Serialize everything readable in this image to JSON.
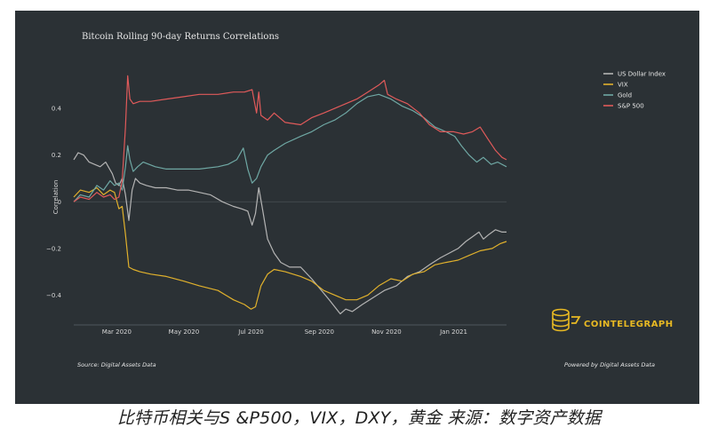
{
  "caption": "比特币相关与S &P500，VIX，DXY，黄金 来源：数字资产数据",
  "source_note": "Source: Digital Assets Data",
  "powered_by": "Powered by Digital Assets Data",
  "logo_text": "COINTELEGRAPH",
  "colors": {
    "background": "#2b3135",
    "us_dollar_index": "#b4b4b4",
    "vix": "#e1b12c",
    "gold": "#6fa8a4",
    "sp500": "#e05a5a",
    "zero_line": "#4a5256"
  },
  "chart_data": {
    "type": "line",
    "title": "Bitcoin Rolling 90-day Returns Correlations",
    "xlabel": "",
    "ylabel": "Correlation",
    "x_domain": [
      "2020-01-22",
      "2021-02-18"
    ],
    "ylim": [
      -0.52,
      0.56
    ],
    "yticks": [
      -0.4,
      -0.2,
      0,
      0.2,
      0.4
    ],
    "ytick_labels": [
      "−0.4",
      "−0.2",
      "0",
      "0.2",
      "0.4"
    ],
    "xticks": [
      {
        "date": "2020-03-01",
        "label": "Mar 2020"
      },
      {
        "date": "2020-05-01",
        "label": "May 2020"
      },
      {
        "date": "2020-07-01",
        "label": "Jul 2020"
      },
      {
        "date": "2020-09-01",
        "label": "Sep 2020"
      },
      {
        "date": "2020-11-01",
        "label": "Nov 2020"
      },
      {
        "date": "2021-01-01",
        "label": "Jan 2021"
      }
    ],
    "grid": false,
    "legend_position": "top-right",
    "series": [
      {
        "name": "US Dollar Index",
        "color": "#b4b4b4",
        "points": [
          [
            "2020-01-22",
            0.18
          ],
          [
            "2020-01-26",
            0.21
          ],
          [
            "2020-01-31",
            0.2
          ],
          [
            "2020-02-05",
            0.17
          ],
          [
            "2020-02-10",
            0.16
          ],
          [
            "2020-02-15",
            0.15
          ],
          [
            "2020-02-20",
            0.17
          ],
          [
            "2020-02-26",
            0.12
          ],
          [
            "2020-02-29",
            0.08
          ],
          [
            "2020-03-03",
            0.07
          ],
          [
            "2020-03-06",
            0.1
          ],
          [
            "2020-03-09",
            0.03
          ],
          [
            "2020-03-12",
            -0.08
          ],
          [
            "2020-03-15",
            0.05
          ],
          [
            "2020-03-18",
            0.1
          ],
          [
            "2020-03-22",
            0.08
          ],
          [
            "2020-03-28",
            0.07
          ],
          [
            "2020-04-05",
            0.06
          ],
          [
            "2020-04-15",
            0.06
          ],
          [
            "2020-04-25",
            0.05
          ],
          [
            "2020-05-05",
            0.05
          ],
          [
            "2020-05-15",
            0.04
          ],
          [
            "2020-05-25",
            0.03
          ],
          [
            "2020-06-05",
            0.0
          ],
          [
            "2020-06-15",
            -0.02
          ],
          [
            "2020-06-22",
            -0.03
          ],
          [
            "2020-06-28",
            -0.04
          ],
          [
            "2020-07-02",
            -0.1
          ],
          [
            "2020-07-05",
            -0.05
          ],
          [
            "2020-07-08",
            0.06
          ],
          [
            "2020-07-11",
            -0.02
          ],
          [
            "2020-07-16",
            -0.16
          ],
          [
            "2020-07-22",
            -0.22
          ],
          [
            "2020-07-28",
            -0.26
          ],
          [
            "2020-08-05",
            -0.28
          ],
          [
            "2020-08-15",
            -0.28
          ],
          [
            "2020-08-25",
            -0.33
          ],
          [
            "2020-09-03",
            -0.38
          ],
          [
            "2020-09-10",
            -0.42
          ],
          [
            "2020-09-15",
            -0.45
          ],
          [
            "2020-09-20",
            -0.48
          ],
          [
            "2020-09-25",
            -0.46
          ],
          [
            "2020-10-01",
            -0.47
          ],
          [
            "2020-10-10",
            -0.44
          ],
          [
            "2020-10-20",
            -0.41
          ],
          [
            "2020-10-30",
            -0.38
          ],
          [
            "2020-11-10",
            -0.36
          ],
          [
            "2020-11-20",
            -0.32
          ],
          [
            "2020-12-01",
            -0.3
          ],
          [
            "2020-12-10",
            -0.27
          ],
          [
            "2020-12-20",
            -0.24
          ],
          [
            "2020-12-28",
            -0.22
          ],
          [
            "2021-01-05",
            -0.2
          ],
          [
            "2021-01-12",
            -0.17
          ],
          [
            "2021-01-18",
            -0.15
          ],
          [
            "2021-01-24",
            -0.13
          ],
          [
            "2021-01-28",
            -0.16
          ],
          [
            "2021-02-02",
            -0.14
          ],
          [
            "2021-02-08",
            -0.12
          ],
          [
            "2021-02-14",
            -0.13
          ],
          [
            "2021-02-18",
            -0.13
          ]
        ]
      },
      {
        "name": "VIX",
        "color": "#e1b12c",
        "points": [
          [
            "2020-01-22",
            0.02
          ],
          [
            "2020-01-28",
            0.05
          ],
          [
            "2020-02-05",
            0.04
          ],
          [
            "2020-02-12",
            0.06
          ],
          [
            "2020-02-18",
            0.03
          ],
          [
            "2020-02-24",
            0.05
          ],
          [
            "2020-02-28",
            0.04
          ],
          [
            "2020-03-03",
            -0.03
          ],
          [
            "2020-03-06",
            -0.02
          ],
          [
            "2020-03-09",
            -0.14
          ],
          [
            "2020-03-12",
            -0.28
          ],
          [
            "2020-03-16",
            -0.29
          ],
          [
            "2020-03-22",
            -0.3
          ],
          [
            "2020-04-01",
            -0.31
          ],
          [
            "2020-04-15",
            -0.32
          ],
          [
            "2020-05-01",
            -0.34
          ],
          [
            "2020-05-15",
            -0.36
          ],
          [
            "2020-06-01",
            -0.38
          ],
          [
            "2020-06-15",
            -0.42
          ],
          [
            "2020-06-25",
            -0.44
          ],
          [
            "2020-07-01",
            -0.46
          ],
          [
            "2020-07-05",
            -0.45
          ],
          [
            "2020-07-10",
            -0.36
          ],
          [
            "2020-07-16",
            -0.31
          ],
          [
            "2020-07-22",
            -0.29
          ],
          [
            "2020-08-01",
            -0.3
          ],
          [
            "2020-08-15",
            -0.32
          ],
          [
            "2020-08-25",
            -0.34
          ],
          [
            "2020-09-05",
            -0.38
          ],
          [
            "2020-09-15",
            -0.4
          ],
          [
            "2020-09-25",
            -0.42
          ],
          [
            "2020-10-05",
            -0.42
          ],
          [
            "2020-10-15",
            -0.4
          ],
          [
            "2020-10-25",
            -0.36
          ],
          [
            "2020-11-05",
            -0.33
          ],
          [
            "2020-11-15",
            -0.34
          ],
          [
            "2020-11-25",
            -0.31
          ],
          [
            "2020-12-05",
            -0.3
          ],
          [
            "2020-12-15",
            -0.27
          ],
          [
            "2020-12-25",
            -0.26
          ],
          [
            "2021-01-05",
            -0.25
          ],
          [
            "2021-01-15",
            -0.23
          ],
          [
            "2021-01-25",
            -0.21
          ],
          [
            "2021-02-05",
            -0.2
          ],
          [
            "2021-02-12",
            -0.18
          ],
          [
            "2021-02-18",
            -0.17
          ]
        ]
      },
      {
        "name": "Gold",
        "color": "#6fa8a4",
        "points": [
          [
            "2020-01-22",
            0.0
          ],
          [
            "2020-01-28",
            0.03
          ],
          [
            "2020-02-05",
            0.02
          ],
          [
            "2020-02-12",
            0.07
          ],
          [
            "2020-02-18",
            0.05
          ],
          [
            "2020-02-24",
            0.09
          ],
          [
            "2020-02-28",
            0.07
          ],
          [
            "2020-03-03",
            0.08
          ],
          [
            "2020-03-06",
            0.05
          ],
          [
            "2020-03-09",
            0.15
          ],
          [
            "2020-03-11",
            0.24
          ],
          [
            "2020-03-13",
            0.18
          ],
          [
            "2020-03-16",
            0.13
          ],
          [
            "2020-03-20",
            0.15
          ],
          [
            "2020-03-25",
            0.17
          ],
          [
            "2020-04-05",
            0.15
          ],
          [
            "2020-04-15",
            0.14
          ],
          [
            "2020-05-01",
            0.14
          ],
          [
            "2020-05-15",
            0.14
          ],
          [
            "2020-06-01",
            0.15
          ],
          [
            "2020-06-10",
            0.16
          ],
          [
            "2020-06-18",
            0.18
          ],
          [
            "2020-06-24",
            0.23
          ],
          [
            "2020-06-28",
            0.14
          ],
          [
            "2020-07-02",
            0.08
          ],
          [
            "2020-07-06",
            0.1
          ],
          [
            "2020-07-10",
            0.15
          ],
          [
            "2020-07-16",
            0.2
          ],
          [
            "2020-07-22",
            0.22
          ],
          [
            "2020-08-01",
            0.25
          ],
          [
            "2020-08-15",
            0.28
          ],
          [
            "2020-08-25",
            0.3
          ],
          [
            "2020-09-05",
            0.33
          ],
          [
            "2020-09-15",
            0.35
          ],
          [
            "2020-09-25",
            0.38
          ],
          [
            "2020-10-05",
            0.42
          ],
          [
            "2020-10-15",
            0.45
          ],
          [
            "2020-10-25",
            0.46
          ],
          [
            "2020-11-05",
            0.44
          ],
          [
            "2020-11-15",
            0.41
          ],
          [
            "2020-11-25",
            0.39
          ],
          [
            "2020-12-05",
            0.36
          ],
          [
            "2020-12-15",
            0.32
          ],
          [
            "2020-12-25",
            0.3
          ],
          [
            "2021-01-02",
            0.28
          ],
          [
            "2021-01-08",
            0.24
          ],
          [
            "2021-01-15",
            0.2
          ],
          [
            "2021-01-22",
            0.17
          ],
          [
            "2021-01-28",
            0.19
          ],
          [
            "2021-02-04",
            0.16
          ],
          [
            "2021-02-10",
            0.17
          ],
          [
            "2021-02-18",
            0.15
          ]
        ]
      },
      {
        "name": "S&P 500",
        "color": "#e05a5a",
        "points": [
          [
            "2020-01-22",
            0.0
          ],
          [
            "2020-01-28",
            0.02
          ],
          [
            "2020-02-05",
            0.01
          ],
          [
            "2020-02-12",
            0.04
          ],
          [
            "2020-02-18",
            0.02
          ],
          [
            "2020-02-24",
            0.03
          ],
          [
            "2020-02-28",
            0.01
          ],
          [
            "2020-03-03",
            0.02
          ],
          [
            "2020-03-06",
            0.09
          ],
          [
            "2020-03-09",
            0.32
          ],
          [
            "2020-03-11",
            0.54
          ],
          [
            "2020-03-13",
            0.44
          ],
          [
            "2020-03-16",
            0.42
          ],
          [
            "2020-03-22",
            0.43
          ],
          [
            "2020-04-01",
            0.43
          ],
          [
            "2020-04-15",
            0.44
          ],
          [
            "2020-05-01",
            0.45
          ],
          [
            "2020-05-15",
            0.46
          ],
          [
            "2020-06-01",
            0.46
          ],
          [
            "2020-06-15",
            0.47
          ],
          [
            "2020-06-25",
            0.47
          ],
          [
            "2020-07-02",
            0.48
          ],
          [
            "2020-07-06",
            0.38
          ],
          [
            "2020-07-08",
            0.47
          ],
          [
            "2020-07-10",
            0.37
          ],
          [
            "2020-07-16",
            0.35
          ],
          [
            "2020-07-22",
            0.38
          ],
          [
            "2020-08-01",
            0.34
          ],
          [
            "2020-08-15",
            0.33
          ],
          [
            "2020-08-25",
            0.36
          ],
          [
            "2020-09-05",
            0.38
          ],
          [
            "2020-09-15",
            0.4
          ],
          [
            "2020-09-25",
            0.42
          ],
          [
            "2020-10-05",
            0.44
          ],
          [
            "2020-10-15",
            0.47
          ],
          [
            "2020-10-25",
            0.5
          ],
          [
            "2020-10-30",
            0.52
          ],
          [
            "2020-11-02",
            0.46
          ],
          [
            "2020-11-10",
            0.44
          ],
          [
            "2020-11-20",
            0.42
          ],
          [
            "2020-12-01",
            0.38
          ],
          [
            "2020-12-10",
            0.33
          ],
          [
            "2020-12-20",
            0.3
          ],
          [
            "2021-01-01",
            0.3
          ],
          [
            "2021-01-10",
            0.29
          ],
          [
            "2021-01-18",
            0.3
          ],
          [
            "2021-01-25",
            0.32
          ],
          [
            "2021-02-01",
            0.27
          ],
          [
            "2021-02-08",
            0.22
          ],
          [
            "2021-02-14",
            0.19
          ],
          [
            "2021-02-18",
            0.18
          ]
        ]
      }
    ]
  }
}
